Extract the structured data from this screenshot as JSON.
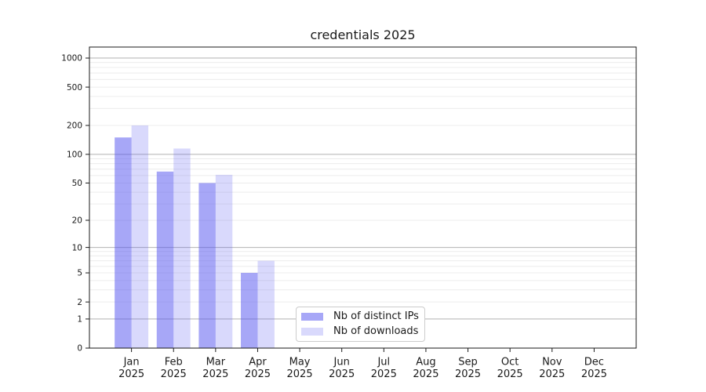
{
  "chart_data": {
    "type": "bar",
    "title": "credentials 2025",
    "categories": [
      "Jan",
      "Feb",
      "Mar",
      "Apr",
      "May",
      "Jun",
      "Jul",
      "Aug",
      "Sep",
      "Oct",
      "Nov",
      "Dec"
    ],
    "year_label": "2025",
    "series": [
      {
        "name": "Nb of distinct IPs",
        "color": "rgba(80,80,240,0.5)",
        "values": [
          150,
          66,
          50,
          5,
          0,
          0,
          0,
          0,
          0,
          0,
          0,
          0
        ]
      },
      {
        "name": "Nb of downloads",
        "color": "rgba(80,80,240,0.22)",
        "values": [
          200,
          115,
          61,
          7,
          0,
          0,
          0,
          0,
          0,
          0,
          0,
          0
        ]
      }
    ],
    "yscale": "log1p",
    "ylim": [
      0,
      1300
    ],
    "yticks": [
      0,
      1,
      2,
      5,
      10,
      20,
      50,
      100,
      200,
      500,
      1000
    ],
    "major_grid_values": [
      1,
      10,
      100,
      1000
    ],
    "grid": {
      "major_color": "#b2b2b2",
      "minor_color": "#ececec"
    },
    "axis_color": "#1a1a1a",
    "text_color": "#1a1a1a",
    "legend_position": "lower center-left",
    "xlabel": "",
    "ylabel": ""
  }
}
